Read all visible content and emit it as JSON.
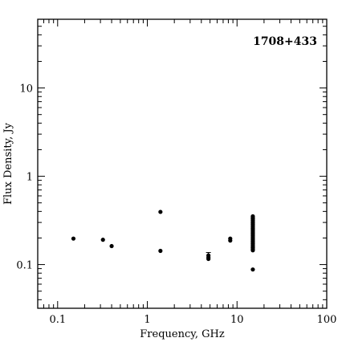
{
  "chart_data": {
    "type": "scatter",
    "title": "1708+433",
    "xlabel": "Frequency, GHz",
    "ylabel": "Flux Density, Jy",
    "xscale": "log",
    "yscale": "log",
    "xlim": [
      0.06,
      100
    ],
    "ylim": [
      0.032,
      60
    ],
    "x_tick_labels": [
      "0.1",
      "1",
      "10",
      "100"
    ],
    "x_tick_values": [
      0.1,
      1,
      10,
      100
    ],
    "y_tick_labels": [
      "0.1",
      "1",
      "10"
    ],
    "y_tick_values": [
      0.1,
      1,
      10
    ],
    "source_label_position": "top-right",
    "marker_color": "#000000",
    "points": [
      {
        "x": 0.15,
        "y": 0.197
      },
      {
        "x": 0.32,
        "y": 0.191
      },
      {
        "x": 0.4,
        "y": 0.162
      },
      {
        "x": 1.4,
        "y": 0.395
      },
      {
        "x": 1.4,
        "y": 0.143
      },
      {
        "x": 4.8,
        "y": 0.127,
        "yerr": 0.01
      },
      {
        "x": 4.8,
        "y": 0.121
      },
      {
        "x": 4.8,
        "y": 0.116
      },
      {
        "x": 8.4,
        "y": 0.197
      },
      {
        "x": 8.4,
        "y": 0.187
      },
      {
        "x": 15,
        "y": 0.088
      },
      {
        "x": 15,
        "y": 0.145
      },
      {
        "x": 15,
        "y": 0.15
      },
      {
        "x": 15,
        "y": 0.155
      },
      {
        "x": 15,
        "y": 0.16
      },
      {
        "x": 15,
        "y": 0.166
      },
      {
        "x": 15,
        "y": 0.172
      },
      {
        "x": 15,
        "y": 0.178
      },
      {
        "x": 15,
        "y": 0.184
      },
      {
        "x": 15,
        "y": 0.19
      },
      {
        "x": 15,
        "y": 0.197
      },
      {
        "x": 15,
        "y": 0.204
      },
      {
        "x": 15,
        "y": 0.211
      },
      {
        "x": 15,
        "y": 0.218
      },
      {
        "x": 15,
        "y": 0.226
      },
      {
        "x": 15,
        "y": 0.234
      },
      {
        "x": 15,
        "y": 0.242
      },
      {
        "x": 15,
        "y": 0.25
      },
      {
        "x": 15,
        "y": 0.259
      },
      {
        "x": 15,
        "y": 0.268
      },
      {
        "x": 15,
        "y": 0.277
      },
      {
        "x": 15,
        "y": 0.287
      },
      {
        "x": 15,
        "y": 0.297
      },
      {
        "x": 15,
        "y": 0.307
      },
      {
        "x": 15,
        "y": 0.318
      },
      {
        "x": 15,
        "y": 0.329
      },
      {
        "x": 15,
        "y": 0.34
      },
      {
        "x": 15,
        "y": 0.352
      }
    ]
  }
}
